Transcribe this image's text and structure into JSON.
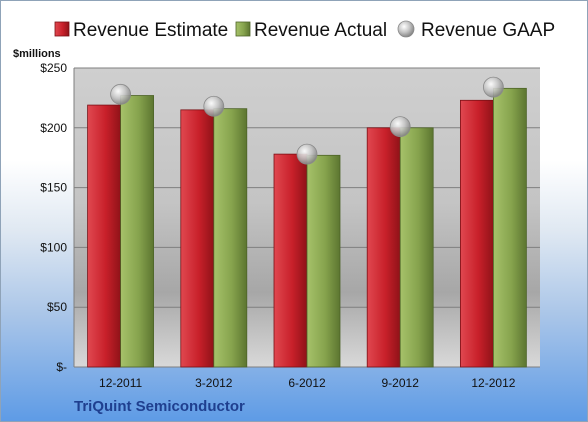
{
  "colors": {
    "estimate": "#c8202a",
    "actual": "#86a34d",
    "gaap": "#b5b5b5"
  },
  "chart_data": {
    "type": "bar",
    "categories": [
      "12-2011",
      "3-2012",
      "6-2012",
      "9-2012",
      "12-2012"
    ],
    "series": [
      {
        "name": "Revenue Estimate",
        "values": [
          219,
          215,
          178,
          200,
          223
        ]
      },
      {
        "name": "Revenue Actual",
        "values": [
          227,
          216,
          177,
          200,
          233
        ]
      },
      {
        "name": "Revenue GAAP",
        "values": [
          228,
          218,
          178,
          201,
          234
        ]
      }
    ],
    "title": "",
    "unit_label": "$millions",
    "ylim": [
      0,
      250
    ],
    "yticks": [
      0,
      50,
      100,
      150,
      200,
      250
    ],
    "ytick_labels": [
      "$-",
      "$50",
      "$100",
      "$150",
      "$200",
      "$250"
    ],
    "grid": true,
    "legend": "top"
  },
  "footer": {
    "company": "TriQuint Semiconductor"
  }
}
